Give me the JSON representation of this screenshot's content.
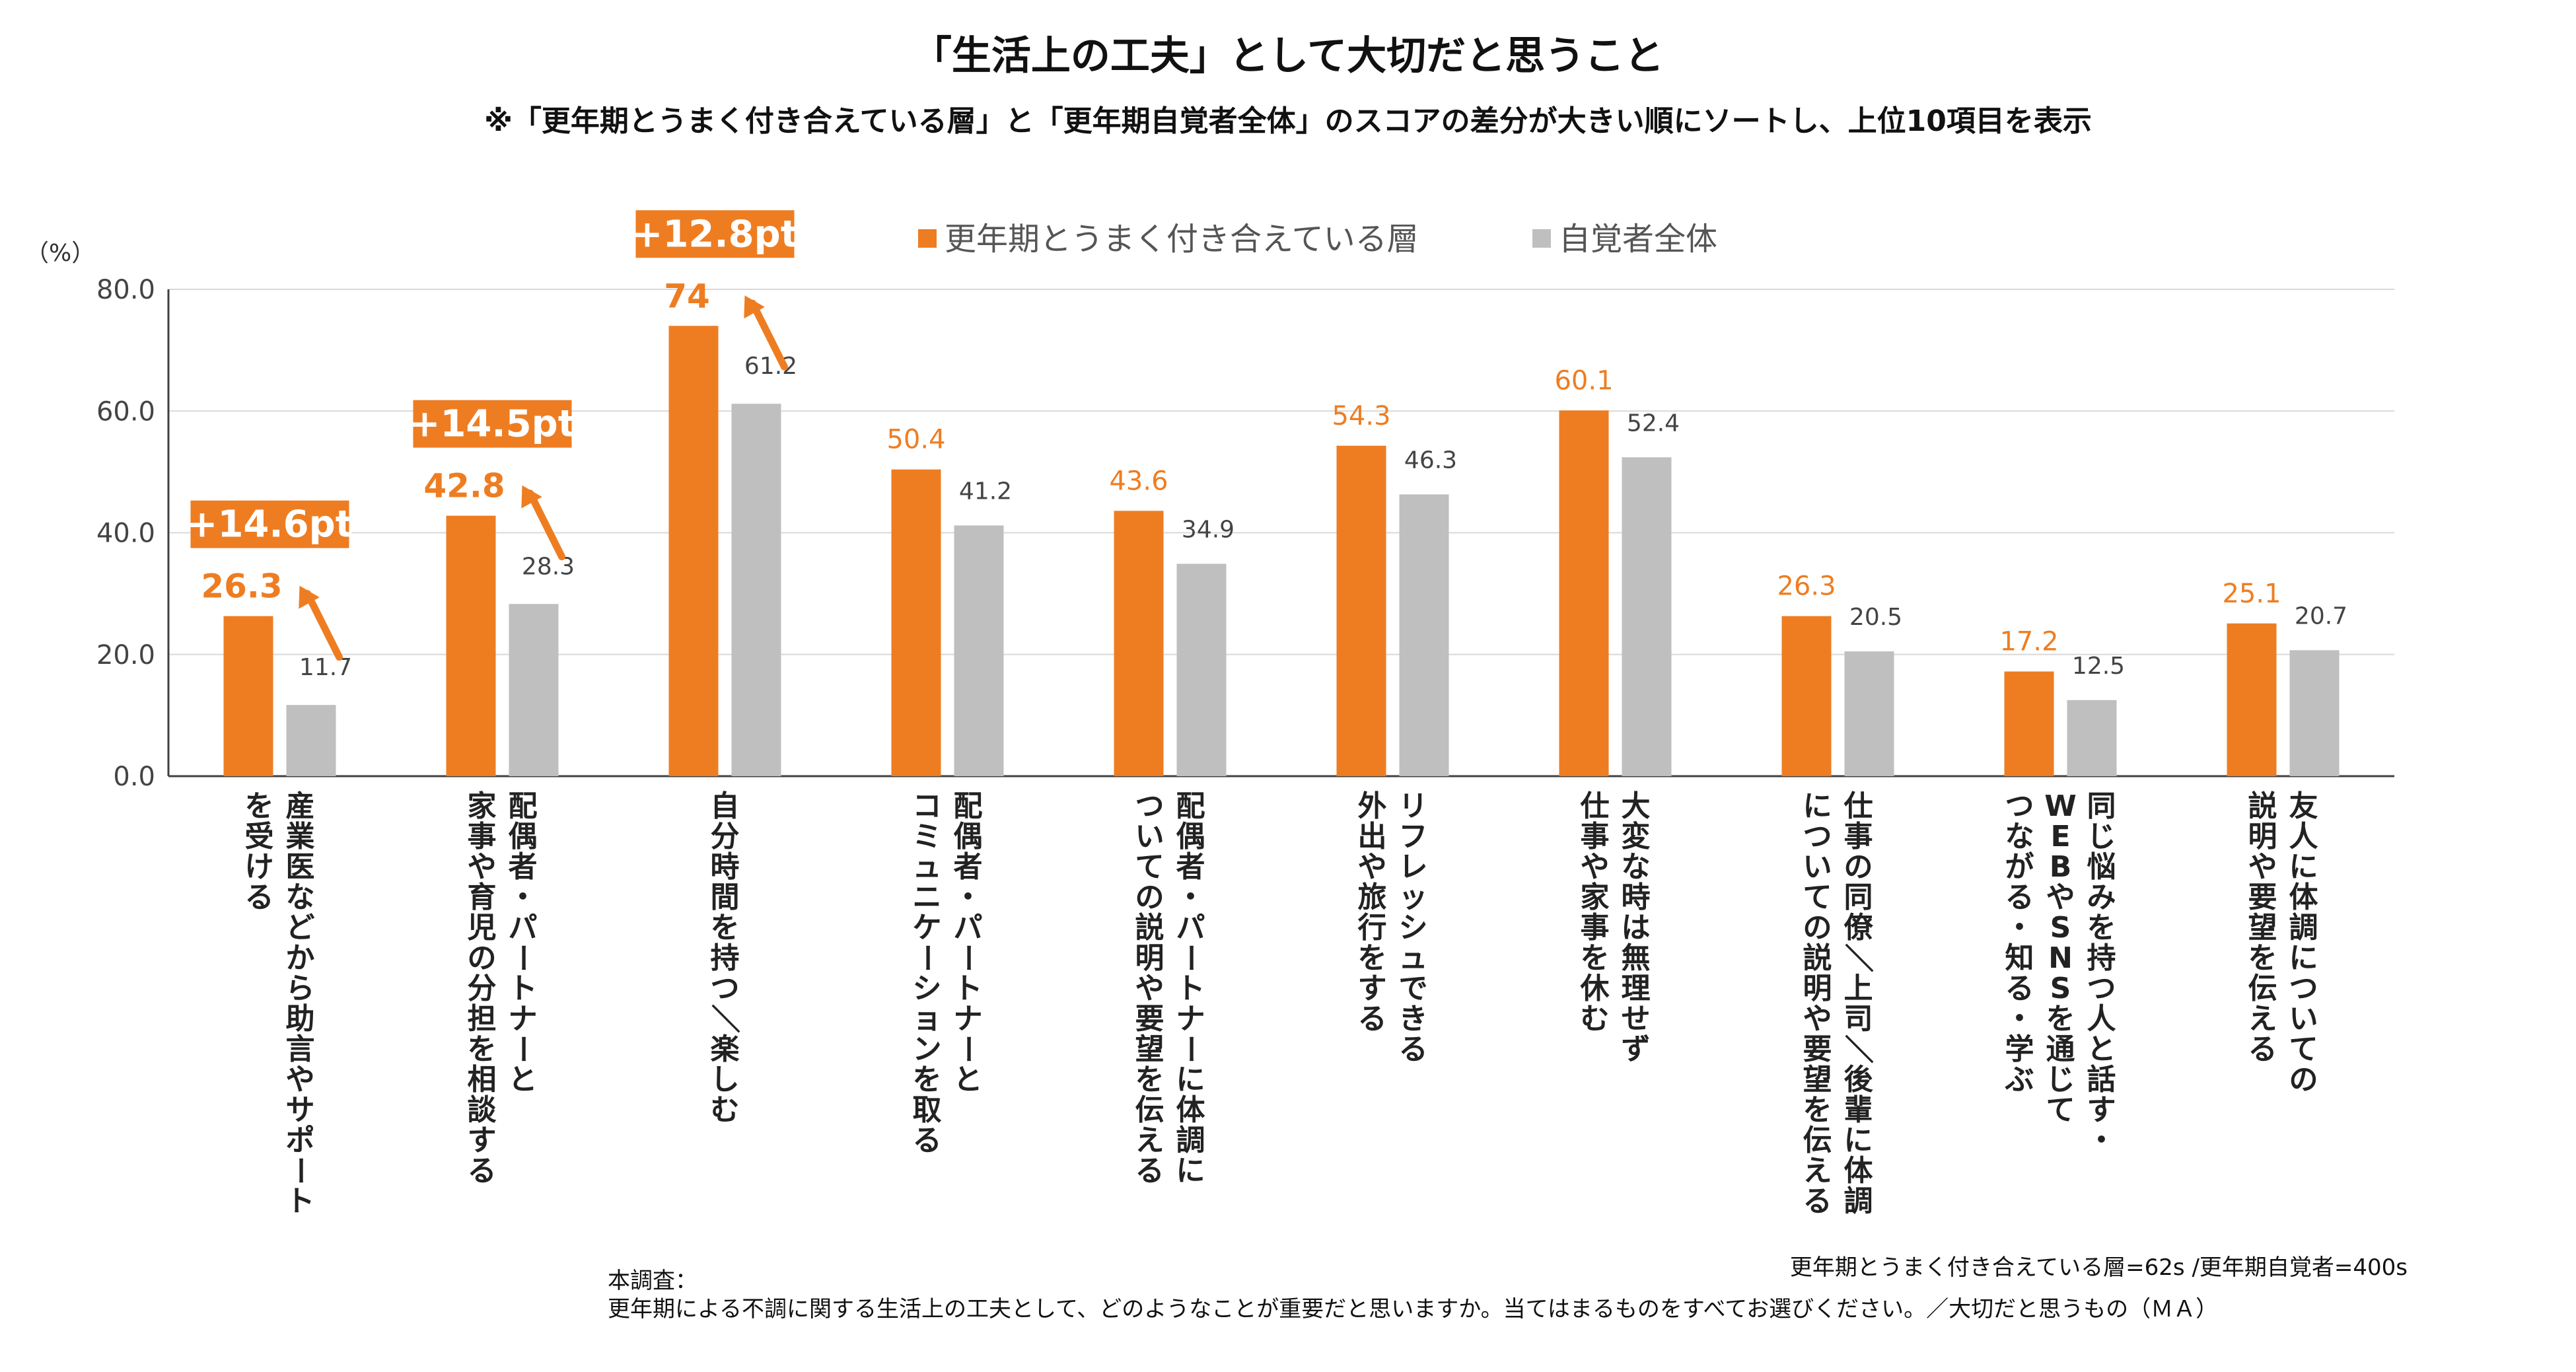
{
  "chart_data": {
    "type": "bar",
    "title": "「生活上の工夫」として大切だと思うこと",
    "subtitle": "※「更年期とうまく付き合えている層」と「更年期自覚者全体」のスコアの差分が大きい順にソートし、上位10項目を表示",
    "unit_label": "（%）",
    "ylim": [
      0,
      80
    ],
    "yticks": [
      "0.0",
      "20.0",
      "40.0",
      "60.0",
      "80.0"
    ],
    "categories": [
      [
        "産業医などから助言やサポート",
        "を受ける"
      ],
      [
        "配偶者・パートナーと",
        "家事や育児の分担を相談する"
      ],
      [
        "自分時間を持つ／楽しむ"
      ],
      [
        "配偶者・パートナーと",
        "コミュニケーションを取る"
      ],
      [
        "配偶者・パートナーに体調に",
        "ついての説明や要望を伝える"
      ],
      [
        "リフレッシュできる",
        "外出や旅行をする"
      ],
      [
        "大変な時は無理せず",
        "仕事や家事を休む"
      ],
      [
        "仕事の同僚／上司／後輩に体調",
        "についての説明や要望を伝える"
      ],
      [
        "同じ悩みを持つ人と話す・",
        "WEBやSNSを通じて",
        "つながる・知る・学ぶ"
      ],
      [
        "友人に体調についての",
        "説明や要望を伝える"
      ]
    ],
    "series": [
      {
        "name": "更年期とうまく付き合えている層",
        "color": "#ee7d22",
        "values": [
          26.3,
          42.8,
          74.0,
          50.4,
          43.6,
          54.3,
          60.1,
          26.3,
          17.2,
          25.1
        ]
      },
      {
        "name": "自覚者全体",
        "color": "#bfbfbf",
        "values": [
          11.7,
          28.3,
          61.2,
          41.2,
          34.9,
          46.3,
          52.4,
          20.5,
          12.5,
          20.7
        ]
      }
    ],
    "highlights": [
      {
        "index": 0,
        "diff": "+14.6pt"
      },
      {
        "index": 1,
        "diff": "+14.5pt"
      },
      {
        "index": 2,
        "diff": "+12.8pt"
      }
    ]
  },
  "notes": {
    "sample": "更年期とうまく付き合えている層=62s  /更年期自覚者=400s",
    "survey_heading": "本調査：",
    "survey_question": "更年期による不調に関する生活上の工夫として、どのようなことが重要だと思いますか。当てはまるものをすべてお選びください。／大切だと思うもの（ＭＡ）"
  },
  "colors": {
    "accent": "#ee7d22",
    "gray": "#bfbfbf",
    "grid": "#d9d9d9",
    "axis": "#404040"
  }
}
